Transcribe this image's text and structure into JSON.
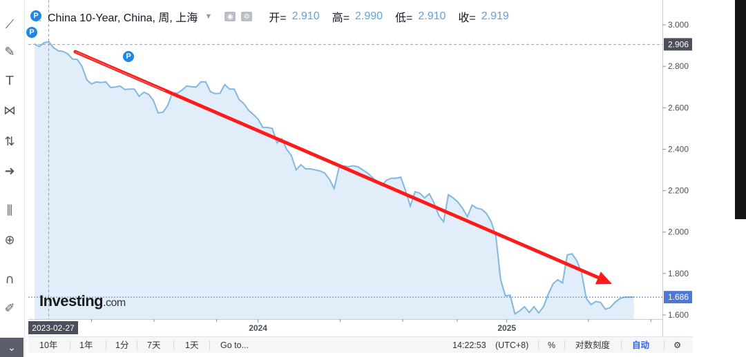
{
  "header": {
    "symbol": "China 10-Year, China, 周, 上海",
    "open_label": "开=",
    "open": "2.910",
    "high_label": "高=",
    "high": "2.990",
    "low_label": "低=",
    "low": "2.910",
    "close_label": "收=",
    "close": "2.919"
  },
  "logo": {
    "name": "Investing",
    "suffix": ".com"
  },
  "markers": {
    "p": "P"
  },
  "crosshair": {
    "date_label": "2023-02-27",
    "price_label": "2.906",
    "price": 2.906
  },
  "last_price": {
    "label": "1.686",
    "value": 1.686
  },
  "bottom_bar": {
    "ranges": [
      "10年",
      "1年",
      "1分",
      "7天",
      "1天"
    ],
    "goto": "Go to...",
    "time": "14:22:53",
    "timezone": "(UTC+8)",
    "percent": "%",
    "log_scale": "对数刻度",
    "auto": "自动"
  },
  "colors": {
    "line": "#7fb7e3",
    "fill": "#e1eef9",
    "arrow": "#ff1a1a",
    "last_price": "#4f78d6",
    "ohlc_value": "#5aa3e0"
  },
  "chart_data": {
    "type": "area",
    "title": "China 10-Year, China, 周, 上海",
    "y_ticks": [
      "3.000",
      "2.800",
      "2.600",
      "2.400",
      "2.200",
      "2.000",
      "1.800",
      "1.600"
    ],
    "x_ticks": [
      "2024",
      "2025"
    ],
    "ylim": [
      1.58,
      3.12
    ],
    "xlim": [
      "2023-01-28",
      "2025-08-18"
    ],
    "grid": false,
    "series": [
      {
        "x": [
          "2023-02-06",
          "2023-02-13",
          "2023-02-20",
          "2023-02-27",
          "2023-03-06",
          "2023-03-13",
          "2023-03-20",
          "2023-03-27",
          "2023-04-03",
          "2023-04-10",
          "2023-04-17",
          "2023-04-24",
          "2023-05-01",
          "2023-05-08",
          "2023-05-15",
          "2023-05-22",
          "2023-05-29",
          "2023-06-05",
          "2023-06-12",
          "2023-06-19",
          "2023-06-26",
          "2023-07-03",
          "2023-07-10",
          "2023-07-17",
          "2023-07-24",
          "2023-07-31",
          "2023-08-07",
          "2023-08-14",
          "2023-08-21",
          "2023-08-28",
          "2023-09-04",
          "2023-09-11",
          "2023-09-18",
          "2023-09-25",
          "2023-10-02",
          "2023-10-09",
          "2023-10-16",
          "2023-10-23",
          "2023-10-30",
          "2023-11-06",
          "2023-11-13",
          "2023-11-20",
          "2023-11-27",
          "2023-12-04",
          "2023-12-11",
          "2023-12-18",
          "2023-12-25",
          "2024-01-01",
          "2024-01-08",
          "2024-01-15",
          "2024-01-22",
          "2024-01-29",
          "2024-02-05",
          "2024-02-12",
          "2024-02-19",
          "2024-02-26",
          "2024-03-04",
          "2024-03-11",
          "2024-03-18",
          "2024-03-25",
          "2024-04-01",
          "2024-04-08",
          "2024-04-15",
          "2024-04-22",
          "2024-04-29",
          "2024-05-06",
          "2024-05-13",
          "2024-05-20",
          "2024-05-27",
          "2024-06-03",
          "2024-06-10",
          "2024-06-17",
          "2024-06-24",
          "2024-07-01",
          "2024-07-08",
          "2024-07-15",
          "2024-07-22",
          "2024-07-29",
          "2024-08-05",
          "2024-08-12",
          "2024-08-19",
          "2024-08-26",
          "2024-09-02",
          "2024-09-09",
          "2024-09-16",
          "2024-09-23",
          "2024-09-30",
          "2024-10-07",
          "2024-10-14",
          "2024-10-21",
          "2024-10-28",
          "2024-11-04",
          "2024-11-11",
          "2024-11-18",
          "2024-11-25",
          "2024-12-02",
          "2024-12-09",
          "2024-12-16",
          "2024-12-23",
          "2024-12-30",
          "2025-01-06",
          "2025-01-13",
          "2025-01-20",
          "2025-01-27",
          "2025-02-03",
          "2025-02-10",
          "2025-02-17",
          "2025-02-24",
          "2025-03-03",
          "2025-03-10",
          "2025-03-17",
          "2025-03-24",
          "2025-03-31",
          "2025-04-07",
          "2025-04-14",
          "2025-04-21",
          "2025-04-28",
          "2025-05-05",
          "2025-05-12",
          "2025-05-19",
          "2025-05-26",
          "2025-06-02",
          "2025-06-09",
          "2025-06-16",
          "2025-06-23",
          "2025-06-30",
          "2025-07-07"
        ],
        "values": [
          2.908,
          2.895,
          2.913,
          2.919,
          2.89,
          2.875,
          2.872,
          2.86,
          2.835,
          2.833,
          2.8,
          2.735,
          2.715,
          2.725,
          2.722,
          2.725,
          2.698,
          2.7,
          2.705,
          2.688,
          2.69,
          2.69,
          2.655,
          2.675,
          2.665,
          2.635,
          2.575,
          2.578,
          2.61,
          2.672,
          2.67,
          2.685,
          2.705,
          2.702,
          2.7,
          2.725,
          2.725,
          2.677,
          2.668,
          2.67,
          2.712,
          2.69,
          2.69,
          2.64,
          2.62,
          2.588,
          2.568,
          2.545,
          2.505,
          2.505,
          2.5,
          2.43,
          2.45,
          2.4,
          2.37,
          2.3,
          2.325,
          2.305,
          2.305,
          2.3,
          2.295,
          2.285,
          2.255,
          2.21,
          2.31,
          2.32,
          2.315,
          2.32,
          2.315,
          2.3,
          2.285,
          2.265,
          2.24,
          2.225,
          2.25,
          2.26,
          2.26,
          2.265,
          2.2,
          2.125,
          2.195,
          2.188,
          2.165,
          2.185,
          2.14,
          2.08,
          2.05,
          2.18,
          2.165,
          2.145,
          2.115,
          2.075,
          2.13,
          2.115,
          2.11,
          2.09,
          2.05,
          1.98,
          1.77,
          1.692,
          1.695,
          1.605,
          1.62,
          1.64,
          1.612,
          1.64,
          1.61,
          1.64,
          1.7,
          1.75,
          1.77,
          1.755,
          1.89,
          1.895,
          1.862,
          1.805,
          1.68,
          1.65,
          1.665,
          1.66,
          1.628,
          1.635,
          1.66,
          1.678,
          1.686,
          1.686,
          1.686
        ]
      }
    ]
  }
}
